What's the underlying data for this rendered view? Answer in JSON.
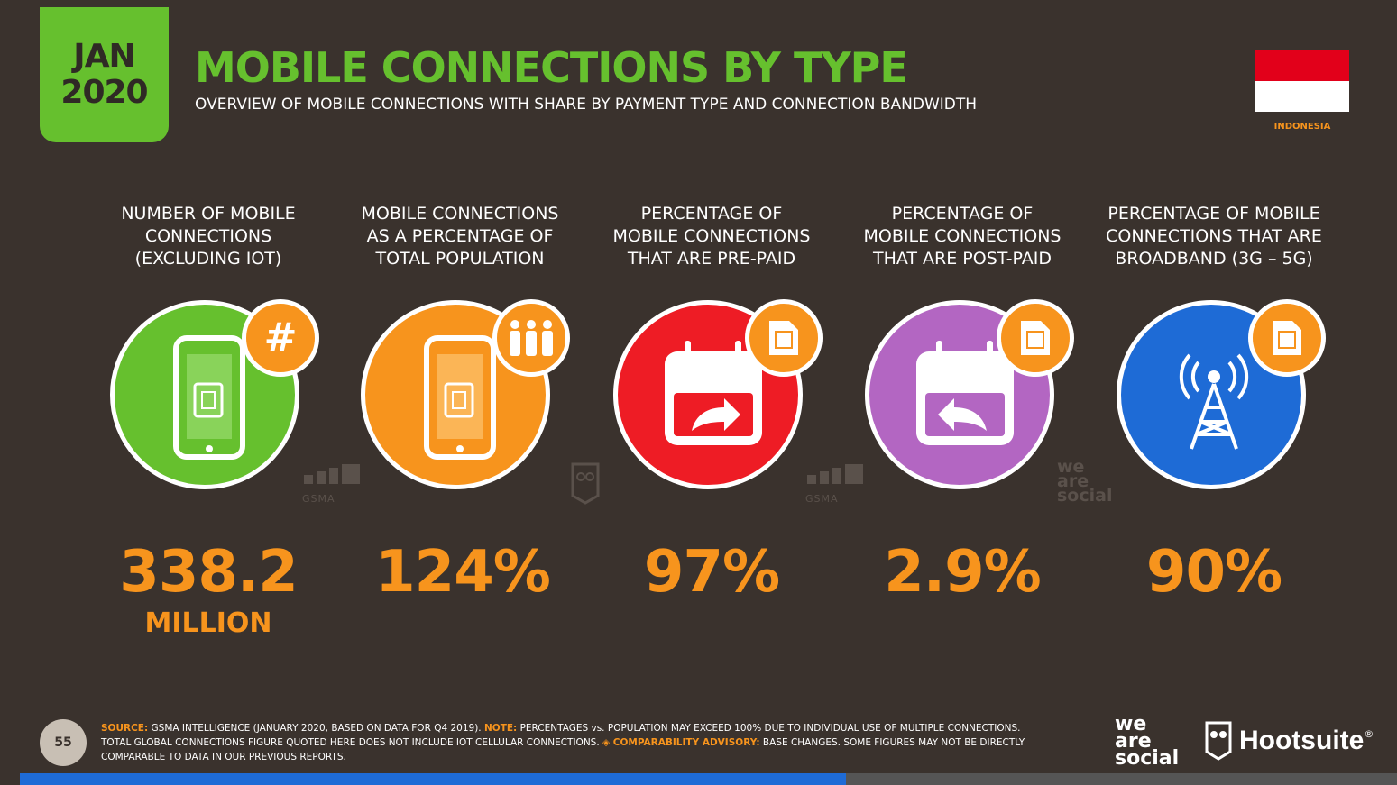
{
  "header": {
    "date_line1": "JAN",
    "date_line2": "2020",
    "title": "MOBILE CONNECTIONS BY TYPE",
    "subtitle": "OVERVIEW OF MOBILE CONNECTIONS WITH SHARE BY PAYMENT TYPE AND CONNECTION BANDWIDTH",
    "country": "INDONESIA"
  },
  "colors": {
    "brand_green": "#66c02e",
    "accent_orange": "#f7941d",
    "background": "#3a322d",
    "prepaid_red": "#ee1c25",
    "postpaid_purple": "#b366c2",
    "broadband_blue": "#1e6bd6"
  },
  "stats": [
    {
      "label_lines": [
        "NUMBER OF MOBILE",
        "CONNECTIONS",
        "(EXCLUDING IOT)"
      ],
      "value": "338.2",
      "unit": "MILLION",
      "icon": "mobile-phone-sim-icon",
      "badge_icon": "hash-icon",
      "color": "#66c02e"
    },
    {
      "label_lines": [
        "MOBILE CONNECTIONS",
        "AS A PERCENTAGE OF",
        "TOTAL POPULATION"
      ],
      "value": "124%",
      "unit": "",
      "icon": "mobile-phone-sim-icon",
      "badge_icon": "people-icon",
      "color": "#f7941d"
    },
    {
      "label_lines": [
        "PERCENTAGE OF",
        "MOBILE CONNECTIONS",
        "THAT ARE PRE-PAID"
      ],
      "value": "97%",
      "unit": "",
      "icon": "calendar-forward-arrow-icon",
      "badge_icon": "sim-card-icon",
      "color": "#ee1c25"
    },
    {
      "label_lines": [
        "PERCENTAGE OF",
        "MOBILE CONNECTIONS",
        "THAT ARE POST-PAID"
      ],
      "value": "2.9%",
      "unit": "",
      "icon": "calendar-back-arrow-icon",
      "badge_icon": "sim-card-icon",
      "color": "#b366c2"
    },
    {
      "label_lines": [
        "PERCENTAGE OF MOBILE",
        "CONNECTIONS THAT ARE",
        "BROADBAND (3G – 5G)"
      ],
      "value": "90%",
      "unit": "",
      "icon": "cell-tower-icon",
      "badge_icon": "sim-card-icon",
      "color": "#1e6bd6"
    }
  ],
  "watermarks": {
    "gsma": "GSMA",
    "was_line1": "we",
    "was_line2": "are",
    "was_line3": "social"
  },
  "footer": {
    "page_number": "55",
    "source_label": "SOURCE:",
    "source_text": " GSMA INTELLIGENCE (JANUARY 2020, BASED ON DATA FOR Q4 2019). ",
    "note_label": "NOTE:",
    "note_text": " PERCENTAGES vs. POPULATION MAY EXCEED 100% DUE TO INDIVIDUAL USE OF MULTIPLE CONNECTIONS. TOTAL GLOBAL CONNECTIONS FIGURE QUOTED HERE DOES NOT INCLUDE IOT CELLULAR CONNECTIONS. ",
    "advisory_label": "◈ COMPARABILITY ADVISORY:",
    "advisory_text": " BASE CHANGES. SOME FIGURES MAY NOT BE DIRECTLY COMPARABLE TO DATA IN OUR PREVIOUS REPORTS.",
    "logo_was_1": "we",
    "logo_was_2": "are",
    "logo_was_3": "social",
    "logo_hootsuite": "Hootsuite",
    "logo_hootsuite_mark": "®"
  },
  "progress": {
    "fraction": 0.6
  }
}
